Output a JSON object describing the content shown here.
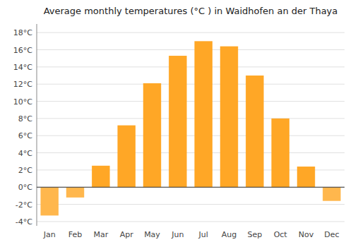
{
  "chart_data": {
    "type": "bar",
    "title": "Average monthly temperatures (°C ) in Waidhofen an der Thaya",
    "categories": [
      "Jan",
      "Feb",
      "Mar",
      "Apr",
      "May",
      "Jun",
      "Jul",
      "Aug",
      "Sep",
      "Oct",
      "Nov",
      "Dec"
    ],
    "values": [
      -3.3,
      -1.2,
      2.5,
      7.2,
      12.1,
      15.3,
      17.0,
      16.4,
      13.0,
      8.0,
      2.4,
      -1.6
    ],
    "colors": [
      "#FFB74D",
      "#FFB74D",
      "#FFA726",
      "#FFA726",
      "#FFA726",
      "#FFA726",
      "#FFA726",
      "#FFA726",
      "#FFA726",
      "#FFA726",
      "#FFA726",
      "#FFB74D"
    ],
    "ylim": [
      -4.5,
      19.0
    ],
    "yticks": [
      {
        "value": -4,
        "label": "-4°C"
      },
      {
        "value": -2,
        "label": "-2°C"
      },
      {
        "value": 0,
        "label": "0°C"
      },
      {
        "value": 2,
        "label": "2°C"
      },
      {
        "value": 4,
        "label": "4°C"
      },
      {
        "value": 6,
        "label": "6°C"
      },
      {
        "value": 8,
        "label": "8°C"
      },
      {
        "value": 10,
        "label": "10°C"
      },
      {
        "value": 12,
        "label": "12°C"
      },
      {
        "value": 14,
        "label": "14°C"
      },
      {
        "value": 16,
        "label": "16°C"
      },
      {
        "value": 18,
        "label": "18°C"
      }
    ],
    "grid": true
  }
}
